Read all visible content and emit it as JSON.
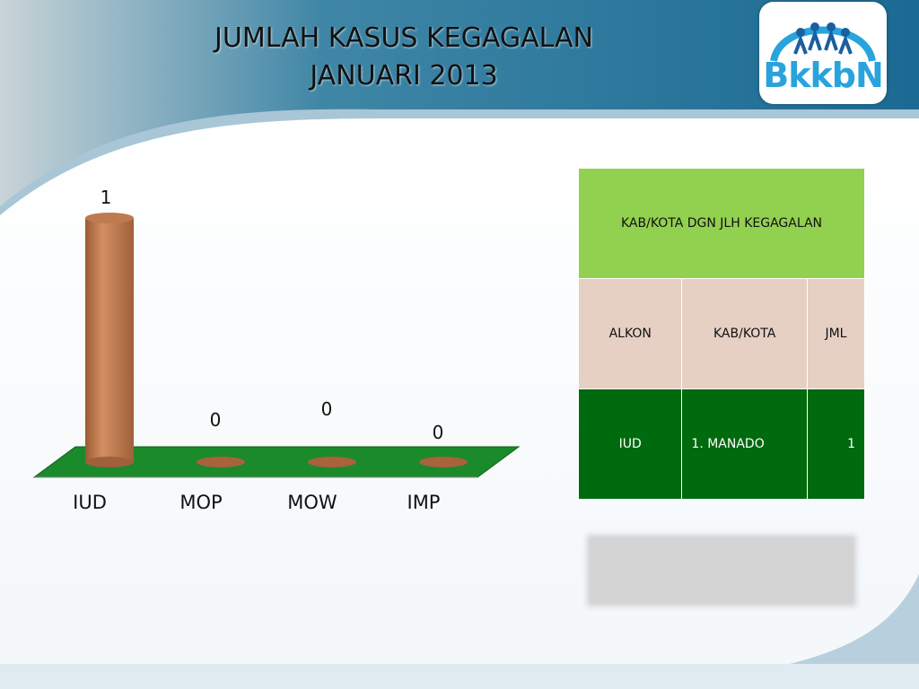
{
  "title": {
    "line1": "JUMLAH KASUS KEGAGALAN",
    "line2": "JANUARI 2013"
  },
  "logo": {
    "text": "BkkbN"
  },
  "chart_data": {
    "type": "bar",
    "categories": [
      "IUD",
      "MOP",
      "MOW",
      "IMP"
    ],
    "values": [
      1,
      0,
      0,
      0
    ],
    "data_labels": [
      "1",
      "0",
      "0",
      "0"
    ],
    "title": "",
    "xlabel": "",
    "ylabel": "",
    "ylim": [
      0,
      1
    ],
    "bar_color": "#c8865c",
    "floor_color": "#1a8a2a"
  },
  "table": {
    "header": "KAB/KOTA DGN  JLH  KEGAGALAN",
    "columns": [
      "ALKON",
      "KAB/KOTA",
      "JML"
    ],
    "rows": [
      {
        "alkon": "IUD",
        "kab_kota": "1.   MANADO",
        "jml": "1"
      }
    ]
  },
  "colors": {
    "header_green": "#92d050",
    "subheader_tan": "#e6d0c4",
    "row_dark_green": "#006a0e",
    "logo_blue": "#29a3dc"
  }
}
